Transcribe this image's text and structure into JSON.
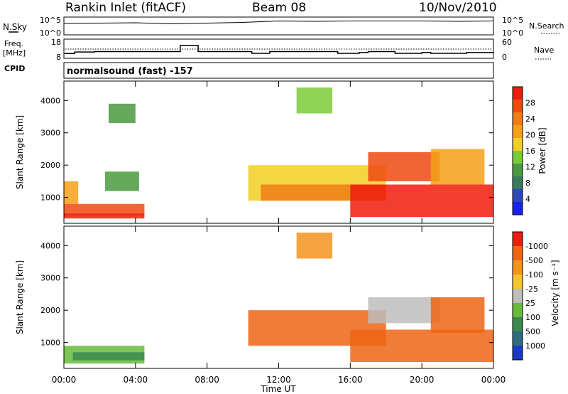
{
  "header": {
    "station": "Rankin Inlet (fitACF)",
    "beam": "Beam 08",
    "date": "10/Nov/2010"
  },
  "panels": {
    "noise": {
      "left_label": "N.Sky",
      "left_top_tick": "10^5",
      "left_bottom_tick": "10^0",
      "right_label": "N.Search",
      "right_top_tick": "10^5",
      "right_bottom_tick": "10^0"
    },
    "freq": {
      "left_label_line1": "Freq.",
      "left_label_line2": "[MHz]",
      "left_top_tick": "18",
      "left_bottom_tick": "8",
      "right_label": "Nave",
      "right_top_tick": "60",
      "right_bottom_tick": "0"
    },
    "cpid": {
      "label": "CPID",
      "text": "normalsound (fast) -157"
    }
  },
  "chart_data": [
    {
      "type": "line",
      "title": "N.Sky / N.Search",
      "x": [
        0,
        2,
        4,
        6,
        8,
        10,
        12,
        14,
        16,
        18,
        20,
        22,
        24
      ],
      "series": [
        {
          "name": "N.Sky",
          "values": [
            3.2,
            3.3,
            3.4,
            3.1,
            3.3,
            3.5,
            3.9,
            3.8,
            3.9,
            3.9,
            3.9,
            3.8,
            3.9
          ]
        }
      ],
      "ylim": [
        0,
        5
      ]
    },
    {
      "type": "line",
      "title": "Freq.",
      "x": [
        0,
        0.6,
        1.7,
        4.5,
        6.5,
        7.5,
        10.5,
        11.5,
        12.5,
        15.3,
        16.5,
        17,
        18,
        18.5,
        20,
        20.5,
        22.5,
        24
      ],
      "series": [
        {
          "name": "Freq.",
          "values": [
            10.5,
            11.3,
            11.5,
            11.5,
            14.7,
            11.5,
            10.6,
            11.5,
            11.5,
            10.6,
            11.0,
            11.5,
            11.5,
            10.6,
            11.0,
            10.6,
            11.0,
            11.3
          ]
        }
      ],
      "ylim": [
        8,
        18
      ]
    },
    {
      "type": "heatmap",
      "ylabel": "Slant Range [km]",
      "xlabel": "Time UT",
      "x_ticks": [
        "00:00",
        "04:00",
        "08:00",
        "12:00",
        "16:00",
        "20:00",
        "00:00"
      ],
      "y_ticks": [
        "1000",
        "2000",
        "3000",
        "4000"
      ],
      "xlim": [
        0,
        24
      ],
      "ylim": [
        200,
        4600
      ],
      "colorbar": {
        "label": "Power [dB]",
        "ticks": [
          "4",
          "8",
          "12",
          "16",
          "20",
          "24",
          "28"
        ],
        "colors": [
          "#1a22f0",
          "#2d48b8",
          "#3a7a5c",
          "#4a9a40",
          "#7bcc3a",
          "#f2cf22",
          "#f6a018",
          "#f07d15",
          "#ef4a10",
          "#ee1c0c"
        ]
      },
      "regions": [
        {
          "t0": 0,
          "t1": 4.5,
          "r0": 450,
          "r1": 800,
          "level": 8
        },
        {
          "t0": 0,
          "t1": 4.5,
          "r0": 350,
          "r1": 500,
          "level": 9
        },
        {
          "t0": 0,
          "t1": 0.8,
          "r0": 800,
          "r1": 1500,
          "level": 6
        },
        {
          "t0": 2.3,
          "t1": 4.2,
          "r0": 1200,
          "r1": 1800,
          "level": 3
        },
        {
          "t0": 2.5,
          "t1": 4.0,
          "r0": 3300,
          "r1": 3900,
          "level": 3
        },
        {
          "t0": 10.3,
          "t1": 18,
          "r0": 900,
          "r1": 2000,
          "level": 5
        },
        {
          "t0": 11,
          "t1": 18,
          "r0": 900,
          "r1": 1400,
          "level": 7
        },
        {
          "t0": 16,
          "t1": 24,
          "r0": 400,
          "r1": 1400,
          "level": 9
        },
        {
          "t0": 17,
          "t1": 21,
          "r0": 1500,
          "r1": 2400,
          "level": 8
        },
        {
          "t0": 13,
          "t1": 15,
          "r0": 3600,
          "r1": 4400,
          "level": 4
        },
        {
          "t0": 20.5,
          "t1": 23.5,
          "r0": 1400,
          "r1": 2500,
          "level": 6
        }
      ]
    },
    {
      "type": "heatmap",
      "ylabel": "Slant Range [km]",
      "xlabel": "Time UT",
      "x_ticks": [
        "00:00",
        "04:00",
        "08:00",
        "12:00",
        "16:00",
        "20:00",
        "00:00"
      ],
      "y_ticks": [
        "1000",
        "2000",
        "3000",
        "4000"
      ],
      "xlim": [
        0,
        24
      ],
      "ylim": [
        200,
        4600
      ],
      "colorbar": {
        "label": "Velocity [m s⁻¹]",
        "ticks": [
          "1000",
          "500",
          "100",
          "25",
          "-25",
          "-100",
          "-500",
          "-1000"
        ],
        "colors": [
          "#1a3ac0",
          "#2e6a80",
          "#3a8a50",
          "#69bb3c",
          "#bdbdbd",
          "#f4c432",
          "#f3941e",
          "#ef6514",
          "#ed1c10"
        ]
      },
      "regions": [
        {
          "t0": 0,
          "t1": 4.5,
          "r0": 350,
          "r1": 900,
          "level": 3
        },
        {
          "t0": 0.5,
          "t1": 4.5,
          "r0": 450,
          "r1": 700,
          "level": 2
        },
        {
          "t0": 10.3,
          "t1": 18,
          "r0": 900,
          "r1": 2000,
          "level": 7
        },
        {
          "t0": 16,
          "t1": 24,
          "r0": 400,
          "r1": 1400,
          "level": 7
        },
        {
          "t0": 17,
          "t1": 21,
          "r0": 1600,
          "r1": 2400,
          "level": 4
        },
        {
          "t0": 13,
          "t1": 15,
          "r0": 3600,
          "r1": 4400,
          "level": 6
        },
        {
          "t0": 20.5,
          "t1": 23.5,
          "r0": 1300,
          "r1": 2400,
          "level": 7
        }
      ]
    }
  ]
}
